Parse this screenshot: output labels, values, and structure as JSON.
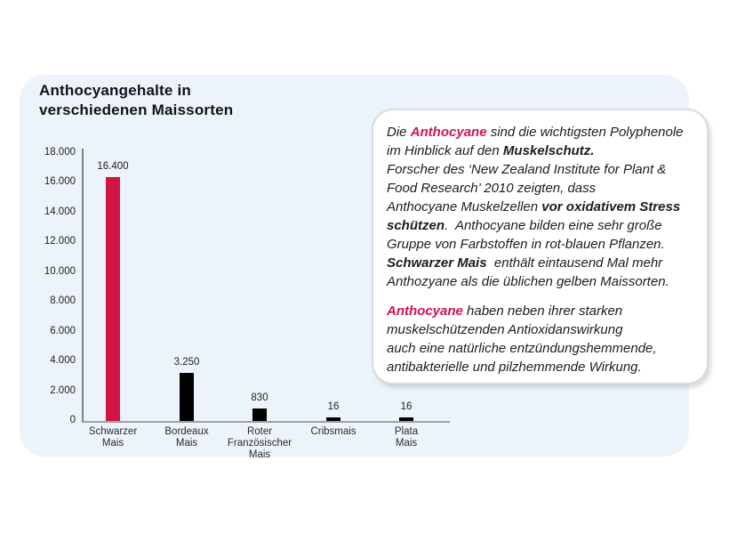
{
  "page": {
    "background": "#ffffff"
  },
  "panel": {
    "background": "#ECF3FA"
  },
  "chart_data": {
    "type": "bar",
    "title": "Anthocyangehalte in\nverschiedenen Maissorten",
    "categories": [
      "Schwarzer\nMais",
      "Bordeaux\nMais",
      "Roter\nFranzösischer\nMais",
      "Cribsmais",
      "Plata\nMais"
    ],
    "values": [
      16400,
      3250,
      830,
      16,
      16
    ],
    "value_labels": [
      "16.400",
      "3.250",
      "830",
      "16",
      "16"
    ],
    "bar_colors": [
      "#CE1546",
      "#000000",
      "#000000",
      "#000000",
      "#000000"
    ],
    "xlabel": "",
    "ylabel": "",
    "ylim": [
      0,
      18000
    ],
    "ytick_labels": [
      "18.000",
      "16.000",
      "14.000",
      "12.000",
      "10.000",
      "8.000",
      "6.000",
      "4.000",
      "2.000",
      "0"
    ],
    "grid": false,
    "legend": false
  },
  "infobox": {
    "accent_color": "#D2134F",
    "paragraphs": [
      {
        "segments": [
          {
            "t": "Die "
          },
          {
            "t": "Anthocyane",
            "b": true,
            "pink": true
          },
          {
            "t": " sind die wichtigsten Polyphenole\nim Hinblick auf den "
          },
          {
            "t": "Muskelschutz.",
            "b": true
          },
          {
            "t": "\nForscher des ‘New Zealand Institute for Plant &\nFood Research’ 2010 zeigten, dass\nAnthocyane Muskelzellen "
          },
          {
            "t": "vor oxidativem Stress\nschützen",
            "b": true
          },
          {
            "t": ".  Anthocyane bilden eine sehr große\nGruppe von Farbstoffen in rot-blauen Pflanzen.\n"
          },
          {
            "t": "Schwarzer Mais",
            "b": true
          },
          {
            "t": "  enthält eintausend Mal mehr\nAnthozyane als die üblichen gelben Maissorten."
          }
        ]
      },
      {
        "segments": [
          {
            "t": "Anthocyane",
            "b": true,
            "pink": true
          },
          {
            "t": " haben neben ihrer starken\nmuskelschützenden Antioxidanswirkung\nauch eine natürliche entzündungshemmende,\nantibakterielle und pilzhemmende Wirkung."
          }
        ]
      }
    ]
  }
}
